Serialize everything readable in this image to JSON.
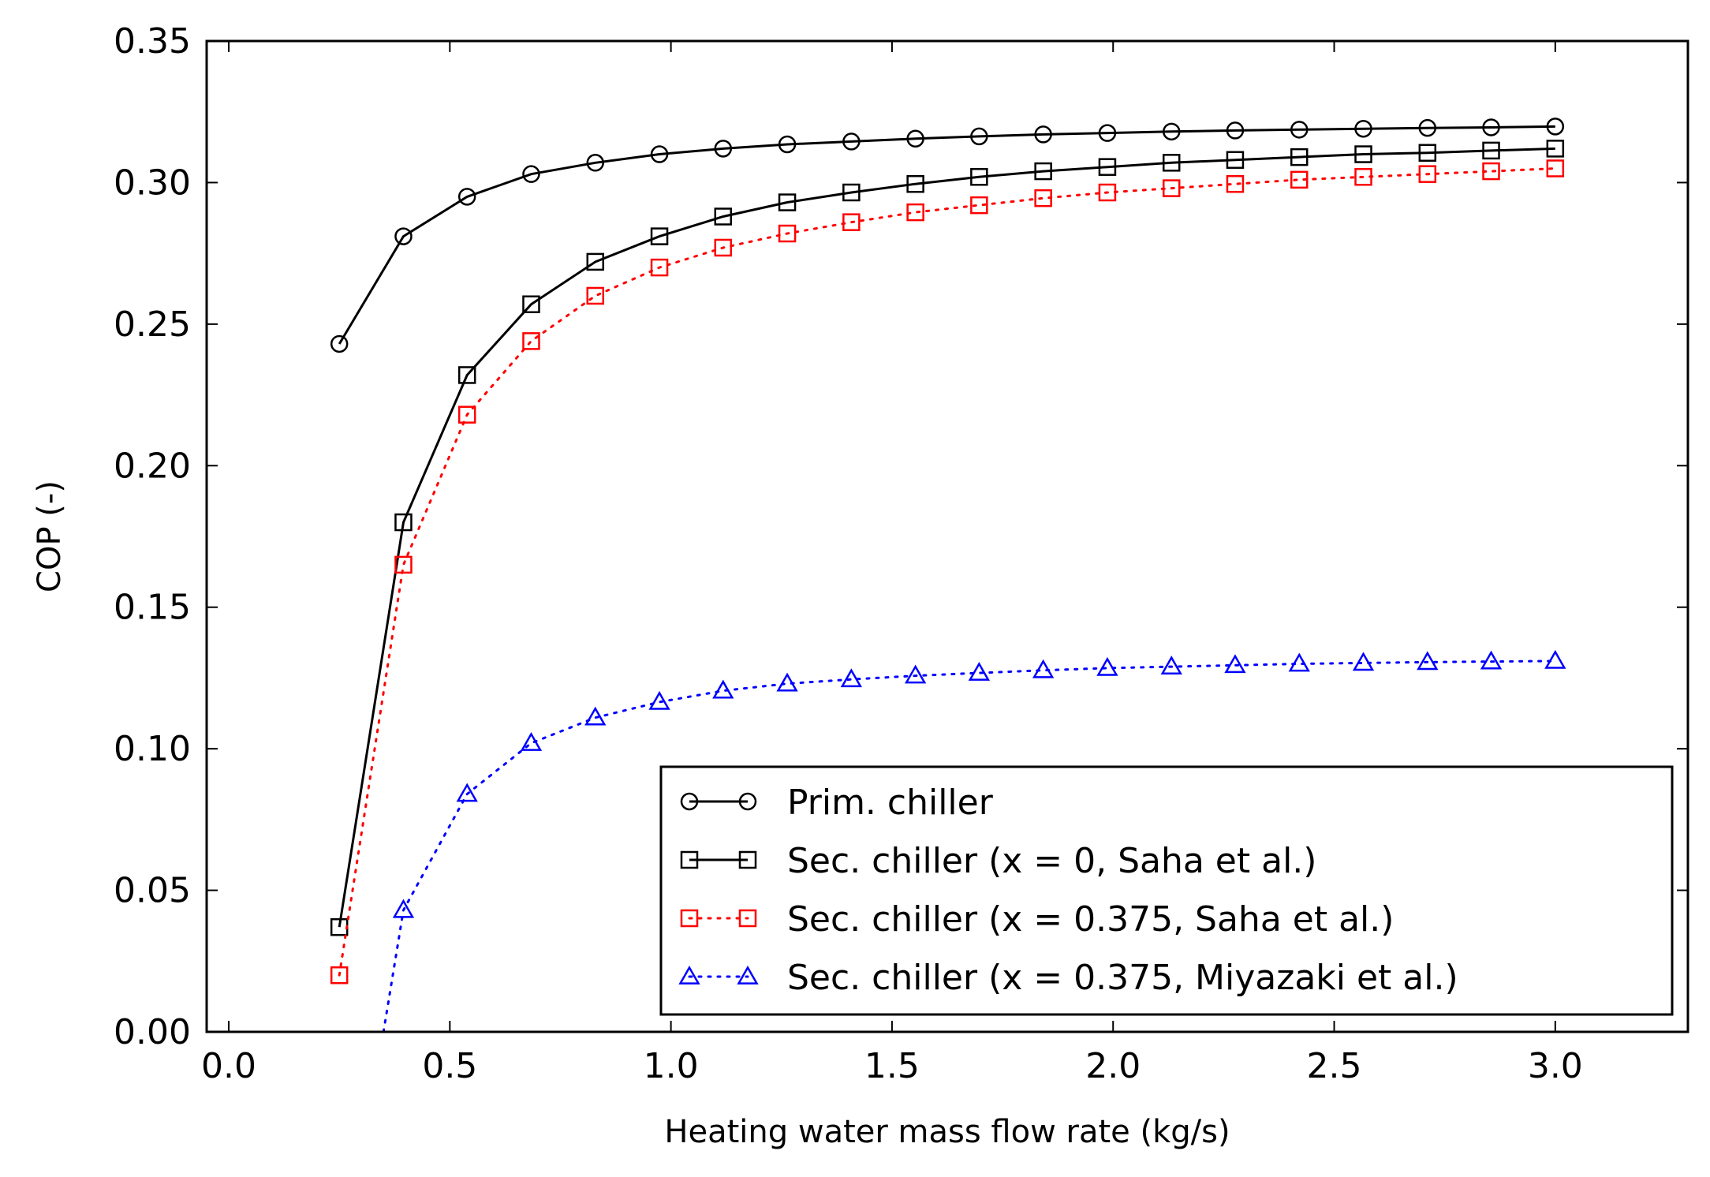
{
  "chart_data": {
    "type": "line",
    "title": "",
    "xlabel": "Heating water mass flow rate (kg/s)",
    "ylabel": "COP (-)",
    "xlim": [
      -0.05,
      3.3
    ],
    "ylim": [
      0.0,
      0.35
    ],
    "xticks": [
      0.0,
      0.5,
      1.0,
      1.5,
      2.0,
      2.5,
      3.0
    ],
    "xtick_labels": [
      "0.0",
      "0.5",
      "1.0",
      "1.5",
      "2.0",
      "2.5",
      "3.0"
    ],
    "yticks": [
      0.0,
      0.05,
      0.1,
      0.15,
      0.2,
      0.25,
      0.3,
      0.35
    ],
    "ytick_labels": [
      "0.00",
      "0.05",
      "0.10",
      "0.15",
      "0.20",
      "0.25",
      "0.30",
      "0.35"
    ],
    "grid": false,
    "legend_position": "lower-right",
    "x": [
      0.25,
      0.395,
      0.539,
      0.684,
      0.829,
      0.974,
      1.118,
      1.263,
      1.408,
      1.553,
      1.697,
      1.842,
      1.987,
      2.132,
      2.276,
      2.421,
      2.566,
      2.711,
      2.855,
      3.0
    ],
    "series": [
      {
        "name": "Prim. chiller",
        "color": "#000000",
        "line_style": "solid",
        "marker": "circle",
        "values": [
          0.243,
          0.281,
          0.295,
          0.303,
          0.307,
          0.31,
          0.312,
          0.3135,
          0.3145,
          0.3155,
          0.3163,
          0.317,
          0.3175,
          0.318,
          0.3184,
          0.3187,
          0.319,
          0.3193,
          0.3195,
          0.3198
        ]
      },
      {
        "name": "Sec. chiller (x = 0, Saha et al.)",
        "color": "#000000",
        "line_style": "solid",
        "marker": "square",
        "values": [
          0.037,
          0.18,
          0.232,
          0.257,
          0.272,
          0.281,
          0.288,
          0.293,
          0.2965,
          0.2995,
          0.302,
          0.304,
          0.3055,
          0.307,
          0.308,
          0.309,
          0.31,
          0.3105,
          0.3113,
          0.312
        ]
      },
      {
        "name": "Sec. chiller (x = 0.375, Saha et al.)",
        "color": "#ff0000",
        "line_style": "dotted",
        "marker": "square",
        "values": [
          0.02,
          0.165,
          0.218,
          0.244,
          0.26,
          0.27,
          0.277,
          0.282,
          0.286,
          0.2895,
          0.292,
          0.2945,
          0.2965,
          0.298,
          0.2995,
          0.301,
          0.302,
          0.303,
          0.304,
          0.305
        ]
      },
      {
        "name": "Sec. chiller (x = 0.375, Miyazaki et al.)",
        "color": "#0000ff",
        "line_style": "dotted",
        "marker": "triangle",
        "x": [
          0.35,
          0.395,
          0.539,
          0.684,
          0.829,
          0.974,
          1.118,
          1.263,
          1.408,
          1.553,
          1.697,
          1.842,
          1.987,
          2.132,
          2.276,
          2.421,
          2.566,
          2.711,
          2.855,
          3.0
        ],
        "marker_from_index": 1,
        "values": [
          0.0,
          0.043,
          0.084,
          0.102,
          0.111,
          0.1165,
          0.1205,
          0.123,
          0.1245,
          0.1258,
          0.1268,
          0.1277,
          0.1285,
          0.129,
          0.1295,
          0.13,
          0.1303,
          0.1306,
          0.1308,
          0.131
        ]
      }
    ]
  }
}
